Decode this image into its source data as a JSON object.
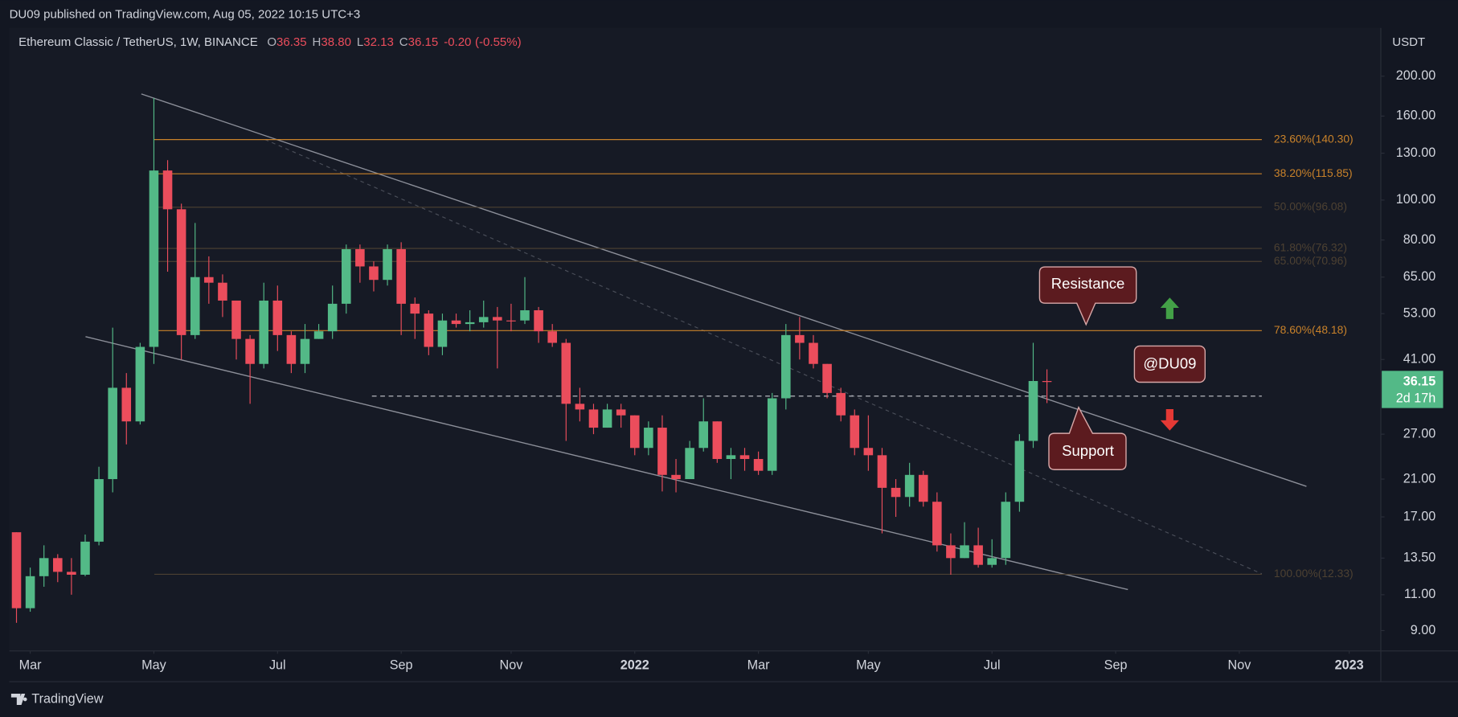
{
  "header": {
    "publisher": "DU09 published on TradingView.com, Aug 05, 2022 10:15 UTC+3"
  },
  "footer": {
    "brand": "TradingView"
  },
  "chart_data": {
    "type": "candlestick",
    "symbol": "Ethereum Classic / TetherUS, 1W, BINANCE",
    "legend_ohlc": [
      {
        "prefix": "O",
        "value": 36.35,
        "label": "36.35"
      },
      {
        "prefix": "H",
        "value": 38.8,
        "label": "38.80"
      },
      {
        "prefix": "L",
        "value": 32.13,
        "label": "32.13"
      },
      {
        "prefix": "C",
        "value": 36.15,
        "label": "36.15"
      }
    ],
    "change": {
      "value": -0.2,
      "label": "-0.20"
    },
    "change_pct": {
      "value": -0.55,
      "label": "(-0.55%)"
    },
    "currency": "USDT",
    "countdown": "2d 17h",
    "up_color": "#53b987",
    "down_color": "#eb4d5c",
    "log_scale": true,
    "grid": false,
    "open": [
      15.6,
      10.2,
      12.2,
      13.5,
      12.5,
      12.3,
      14.8,
      21,
      35,
      29,
      44,
      118,
      95,
      47,
      65,
      63,
      57,
      46,
      40,
      57,
      47,
      40,
      46,
      48,
      56,
      76,
      69,
      64,
      76,
      56,
      53,
      44,
      51,
      50,
      50.5,
      52,
      51,
      51,
      54,
      48,
      45,
      32,
      31,
      28,
      31,
      30,
      25,
      28,
      21.5,
      21,
      25,
      29,
      23.5,
      24,
      23.5,
      22,
      33,
      47,
      45,
      40,
      34,
      30,
      25,
      24,
      20,
      19,
      21.5,
      18.5,
      14.5,
      13.5,
      14.5,
      13,
      13.5,
      18.5,
      26,
      36.35
    ],
    "high": [
      15.6,
      12.8,
      14.5,
      13.8,
      13.5,
      15.4,
      22.5,
      49,
      38,
      45,
      177,
      125,
      98,
      88,
      73,
      66,
      57,
      47,
      63,
      62,
      48,
      50,
      50,
      62,
      78,
      78,
      71,
      78,
      79,
      58,
      54,
      53,
      53,
      54,
      57,
      55,
      56,
      65,
      55,
      50,
      46,
      35,
      32,
      32,
      32,
      30,
      29,
      30,
      23.5,
      26,
      33,
      29,
      25,
      25,
      24.5,
      34,
      50,
      52,
      47,
      40,
      35,
      31,
      30,
      25,
      21,
      23,
      22,
      19.5,
      15.5,
      16.5,
      16,
      15,
      19.5,
      27,
      45,
      38.8
    ],
    "low": [
      9.4,
      10,
      11.5,
      11.8,
      11,
      12.2,
      14.5,
      19.5,
      25.5,
      28.5,
      40,
      67,
      41,
      46,
      56,
      52,
      41,
      32,
      39,
      43,
      38,
      38,
      46,
      46,
      53,
      63,
      60,
      62,
      47,
      46,
      42,
      42,
      49,
      48,
      49,
      39,
      48,
      50,
      45,
      44,
      26,
      29,
      27,
      28,
      28,
      24,
      24,
      19.6,
      19.5,
      21,
      24.5,
      23,
      21,
      22,
      21.5,
      21.5,
      31,
      41,
      39,
      33,
      29,
      24,
      22,
      15.5,
      17,
      18,
      18,
      14,
      12.3,
      13.5,
      12.8,
      12.8,
      13,
      17.5,
      25,
      32.13
    ],
    "close": [
      10.2,
      12.2,
      13.5,
      12.5,
      12.3,
      14.8,
      21,
      35,
      29,
      44,
      118,
      95,
      47,
      65,
      63,
      57,
      46,
      40,
      57,
      47,
      40,
      46,
      48,
      56,
      76,
      69,
      64,
      76,
      56,
      53,
      44,
      51,
      50,
      50.5,
      52,
      51,
      50.8,
      54,
      48,
      45,
      32,
      31,
      28,
      31,
      30,
      25,
      28,
      21.5,
      21,
      25,
      29,
      23.5,
      24,
      23.5,
      22,
      33,
      47,
      45,
      40,
      34,
      30,
      25,
      24,
      20,
      19,
      21.5,
      18.5,
      14.5,
      13.5,
      14.5,
      13,
      13.5,
      18.5,
      26,
      36.35,
      36.15
    ],
    "ylim": [
      8.03,
      262
    ],
    "yticks": [
      {
        "value": 200,
        "label": "200.00"
      },
      {
        "value": 160,
        "label": "160.00"
      },
      {
        "value": 130,
        "label": "130.00"
      },
      {
        "value": 100,
        "label": "100.00"
      },
      {
        "value": 80,
        "label": "80.00"
      },
      {
        "value": 65,
        "label": "65.00"
      },
      {
        "value": 53,
        "label": "53.00"
      },
      {
        "value": 41,
        "label": "41.00"
      },
      {
        "value": 27,
        "label": "27.00"
      },
      {
        "value": 21,
        "label": "21.00"
      },
      {
        "value": 17,
        "label": "17.00"
      },
      {
        "value": 13.5,
        "label": "13.50"
      },
      {
        "value": 11,
        "label": "11.00"
      },
      {
        "value": 9,
        "label": "9.00"
      }
    ],
    "xlim": [
      -1.2,
      99.3
    ],
    "xticks": [
      {
        "value": 1,
        "label": "Mar"
      },
      {
        "value": 10,
        "label": "May"
      },
      {
        "value": 19,
        "label": "Jul"
      },
      {
        "value": 28,
        "label": "Sep"
      },
      {
        "value": 36,
        "label": "Nov"
      },
      {
        "value": 45,
        "label": "2022"
      },
      {
        "value": 54,
        "label": "Mar"
      },
      {
        "value": 62,
        "label": "May"
      },
      {
        "value": 71,
        "label": "Jul"
      },
      {
        "value": 80,
        "label": "Sep"
      },
      {
        "value": 89,
        "label": "Nov"
      },
      {
        "value": 97,
        "label": "2023"
      }
    ],
    "fib_levels": [
      {
        "value": 140.3,
        "label": "23.60%(140.30)",
        "color": "#c9822a"
      },
      {
        "value": 115.85,
        "label": "38.20%(115.85)",
        "color": "#c9822a"
      },
      {
        "value": 96.08,
        "label": "50.00%(96.08)",
        "color": "#4d4132"
      },
      {
        "value": 76.32,
        "label": "61.80%(76.32)",
        "color": "#4d4132"
      },
      {
        "value": 70.96,
        "label": "65.00%(70.96)",
        "color": "#4d4132"
      },
      {
        "value": 48.18,
        "label": "78.60%(48.18)",
        "color": "#c9822a"
      },
      {
        "value": 12.33,
        "label": "100.00%(12.33)",
        "color": "#4d4132"
      }
    ],
    "annotations": [
      "Resistance",
      "Support",
      "@DU09"
    ]
  }
}
